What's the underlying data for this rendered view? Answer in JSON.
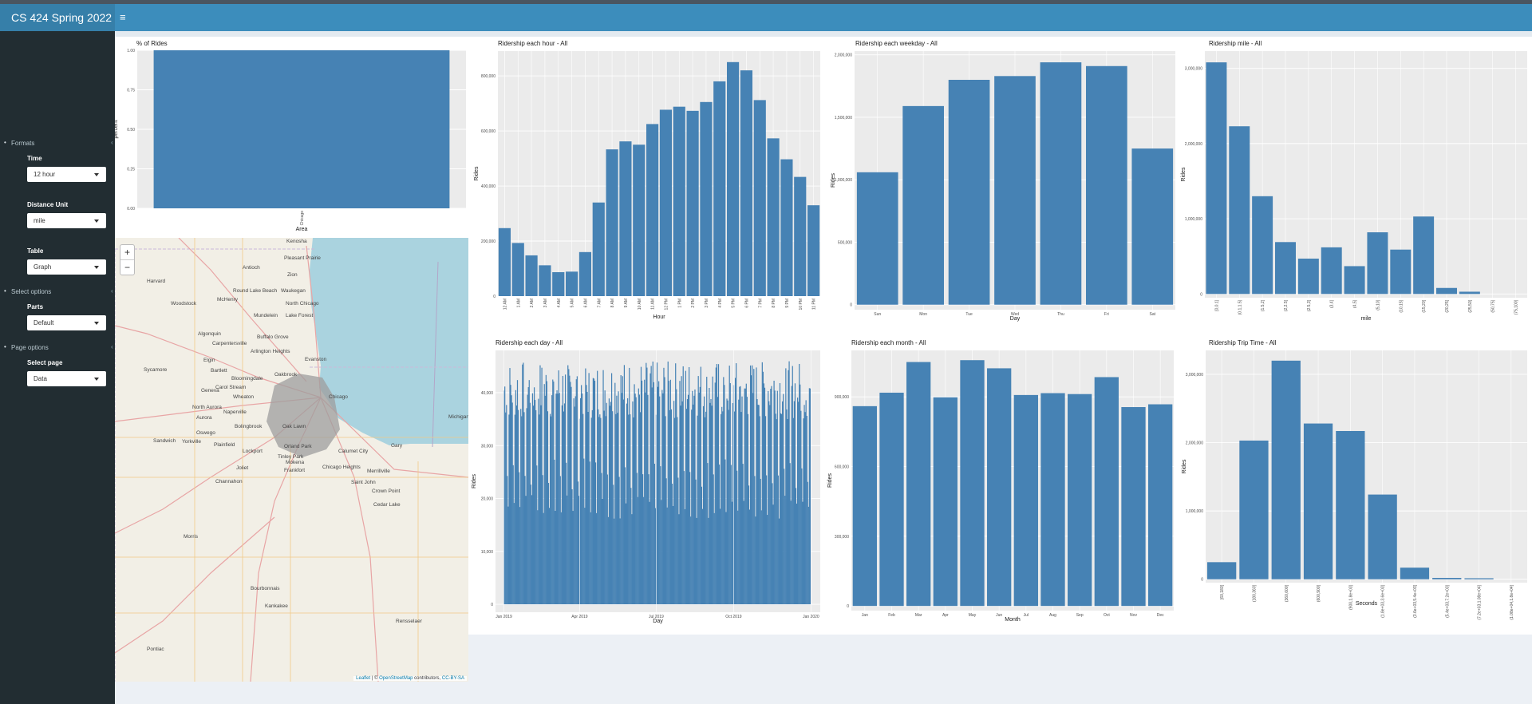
{
  "app": {
    "title": "CS 424 Spring 2022"
  },
  "sidebar": {
    "formats_label": "Formats",
    "time": {
      "label": "Time",
      "value": "12 hour"
    },
    "distance": {
      "label": "Distance Unit",
      "value": "mile"
    },
    "table": {
      "label": "Table",
      "value": "Graph"
    },
    "select_options_label": "Select options",
    "parts": {
      "label": "Parts",
      "value": "Default"
    },
    "page_options_label": "Page options",
    "page": {
      "label": "Select page",
      "value": "Data"
    }
  },
  "map": {
    "zoom_in": "+",
    "zoom_out": "−",
    "attribution": {
      "leaflet": "Leaflet",
      "sep": " | © ",
      "osm": "OpenStreetMap",
      "contrib": " contributors, ",
      "license": "CC-BY-SA"
    },
    "places": [
      "Kenosha",
      "Pleasant Prairie",
      "Antioch",
      "Zion",
      "Harvard",
      "Waukegan",
      "Round Lake Beach",
      "Woodstock",
      "McHenry",
      "North Chicago",
      "Mundelein",
      "Lake Forest",
      "Algonquin",
      "Buffalo Grove",
      "Carpentersville",
      "Arlington Heights",
      "Elgin",
      "Evanston",
      "Sycamore",
      "Bartlett",
      "Bloomingdale",
      "Oakbrook",
      "Carol Stream",
      "Geneva",
      "Wheaton",
      "Chicago",
      "North Aurora",
      "Naperville",
      "Aurora",
      "Bolingbrook",
      "Oak Lawn",
      "Oswego",
      "Sandwich",
      "Yorkville",
      "Plainfield",
      "Lockport",
      "Orland Park",
      "Calumet City",
      "Gary",
      "Tinley Park",
      "Joliet",
      "Mokena",
      "Frankfort",
      "Chicago Heights",
      "Merrillville",
      "Channahon",
      "Saint John",
      "Crown Point",
      "Cedar Lake",
      "Morris",
      "Michigan City",
      "Bourbonnais",
      "Kankakee",
      "Rensselaer",
      "Pontiac"
    ]
  },
  "charts": [
    {
      "id": "pct-rides",
      "chart_data": {
        "type": "bar",
        "title": "% of Rides",
        "xlabel": "Area",
        "ylabel": "percent",
        "categories": [
          "Chicago"
        ],
        "values": [
          1.0
        ],
        "ylim": [
          0,
          1.0
        ],
        "yticks": [
          0,
          0.25,
          0.5,
          0.75,
          1.0
        ],
        "ytick_labels": [
          "0.00",
          "0.25",
          "0.50",
          "0.75",
          "1.00"
        ],
        "grid": true,
        "color": "#4682b4"
      }
    },
    {
      "id": "hour",
      "chart_data": {
        "type": "bar",
        "title": "Ridership each hour - All",
        "xlabel": "Hour",
        "ylabel": "Rides",
        "categories": [
          "12 AM",
          "1 AM",
          "2 AM",
          "3 AM",
          "4 AM",
          "5 AM",
          "6 AM",
          "7 AM",
          "8 AM",
          "9 AM",
          "10 AM",
          "11 AM",
          "12 PM",
          "1 PM",
          "2 PM",
          "3 PM",
          "4 PM",
          "5 PM",
          "6 PM",
          "7 PM",
          "8 PM",
          "9 PM",
          "10 PM",
          "11 PM"
        ],
        "values": [
          247000,
          193000,
          148000,
          112000,
          87000,
          89000,
          160000,
          340000,
          533000,
          562000,
          550000,
          625000,
          677000,
          688000,
          673000,
          705000,
          780000,
          850000,
          820000,
          712000,
          573000,
          497000,
          433000,
          330000
        ],
        "ylim": [
          0,
          890000
        ],
        "yticks": [
          0,
          200000,
          400000,
          600000,
          800000
        ],
        "ytick_labels": [
          "0",
          "200,000",
          "400,000",
          "600,000",
          "800,000"
        ],
        "grid": true,
        "color": "#4682b4"
      }
    },
    {
      "id": "weekday",
      "chart_data": {
        "type": "bar",
        "title": "Ridership each weekday - All",
        "xlabel": "Day",
        "ylabel": "Rides",
        "categories": [
          "Sun",
          "Mon",
          "Tue",
          "Wed",
          "Thu",
          "Fri",
          "Sat"
        ],
        "values": [
          1060000,
          1590000,
          1800000,
          1830000,
          1940000,
          1910000,
          1250000
        ],
        "ylim": [
          -40000,
          2030000
        ],
        "yticks": [
          0,
          500000,
          1000000,
          1500000,
          2000000
        ],
        "ytick_labels": [
          "0",
          "500,000",
          "1,000,000",
          "1,500,000",
          "2,000,000"
        ],
        "grid": true,
        "color": "#4682b4"
      }
    },
    {
      "id": "mile",
      "chart_data": {
        "type": "bar",
        "title": "Ridership mile - All",
        "xlabel": "mile",
        "ylabel": "Rides",
        "categories": [
          "[0,0.1]",
          "(0.1,1.5]",
          "(1.5,2]",
          "(2,2.5]",
          "(2.5,3]",
          "(3,4]",
          "(4,5]",
          "(5,10]",
          "(10,15]",
          "(15,20]",
          "(20,25]",
          "(25,50]",
          "(50,75]",
          "(75,100]"
        ],
        "values": [
          3080000,
          2230000,
          1300000,
          690000,
          470000,
          620000,
          370000,
          820000,
          590000,
          1030000,
          80000,
          30000,
          0,
          0
        ],
        "ylim": [
          -50000,
          3230000
        ],
        "yticks": [
          0,
          1000000,
          2000000,
          3000000
        ],
        "ytick_labels": [
          "0",
          "1,000,000",
          "2,000,000",
          "3,000,000"
        ],
        "grid": true,
        "color": "#4682b4"
      }
    },
    {
      "id": "day",
      "chart_data": {
        "type": "bar",
        "title": "Ridership each day - All",
        "xlabel": "Day",
        "ylabel": "Rides",
        "x_range": [
          "2019-01-01",
          "2019-12-31"
        ],
        "xticks": [
          "Jan 2019",
          "Apr 2019",
          "Jul 2019",
          "Oct 2019",
          "Jan 2020"
        ],
        "weekly_pattern": {
          "weekday_range": [
            35000,
            46000
          ],
          "saturday": 24000,
          "sunday": 18000
        },
        "ylim": [
          -1500,
          48000
        ],
        "yticks": [
          0,
          10000,
          20000,
          30000,
          40000
        ],
        "ytick_labels": [
          "0",
          "10,000",
          "20,000",
          "30,000",
          "40,000"
        ],
        "grid": true,
        "color": "#4682b4"
      }
    },
    {
      "id": "month",
      "chart_data": {
        "type": "bar",
        "title": "Ridership each month - All",
        "xlabel": "Month",
        "ylabel": "Rides",
        "categories": [
          "Jan",
          "Feb",
          "Mar",
          "Apr",
          "May",
          "Jun",
          "Jul",
          "Aug",
          "Sep",
          "Oct",
          "Nov",
          "Dec"
        ],
        "values": [
          860000,
          918000,
          1050000,
          898000,
          1058000,
          1023000,
          908000,
          916000,
          912000,
          985000,
          856000,
          868000
        ],
        "ylim": [
          -20000,
          1100000
        ],
        "yticks": [
          0,
          300000,
          600000,
          900000
        ],
        "ytick_labels": [
          "0",
          "300,000",
          "600,000",
          "900,000"
        ],
        "grid": true,
        "color": "#4682b4"
      }
    },
    {
      "id": "trip-time",
      "chart_data": {
        "type": "bar",
        "title": "Ridership Trip Time - All",
        "xlabel": "Seconds",
        "ylabel": "Rides",
        "categories": [
          "[60,180]",
          "(180,360]",
          "(360,600]",
          "(600,900]",
          "(900,1.8e+03]",
          "(1.8e+03,3.6e+03]",
          "(3.6e+03,5.4e+03]",
          "(5.4e+03,7.2e+03]",
          "(7.2e+03,1.08e+04]",
          "(1.08e+04,1.8e+04]"
        ],
        "values": [
          250000,
          2030000,
          3200000,
          2280000,
          2170000,
          1240000,
          170000,
          20000,
          15000,
          0
        ],
        "ylim": [
          -50000,
          3350000
        ],
        "yticks": [
          0,
          1000000,
          2000000,
          3000000
        ],
        "ytick_labels": [
          "0",
          "1,000,000",
          "2,000,000",
          "3,000,000"
        ],
        "grid": true,
        "color": "#4682b4"
      }
    }
  ]
}
